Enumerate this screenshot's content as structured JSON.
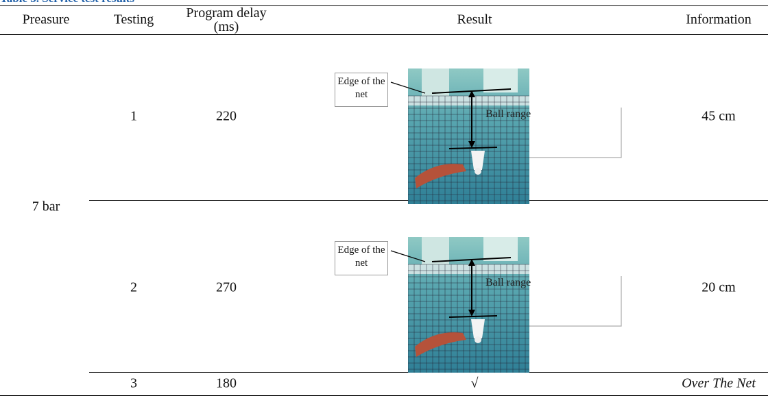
{
  "caption": "Table 3. Service test results",
  "table": {
    "headers": [
      "Preasure",
      "Testing",
      "Program delay (ms)",
      "Result",
      "Information"
    ],
    "group": "7 bar",
    "rows": [
      {
        "testing": "1",
        "delay": "220",
        "result": {
          "edge_label": "Edge of the net",
          "range_label": "Ball range"
        },
        "information": "45 cm"
      },
      {
        "testing": "2",
        "delay": "270",
        "result": {
          "edge_label": "Edge of the net",
          "range_label": "Ball range"
        },
        "information": "20 cm"
      },
      {
        "testing": "3",
        "delay": "180",
        "result": "√",
        "information": "Over The Net"
      }
    ]
  }
}
